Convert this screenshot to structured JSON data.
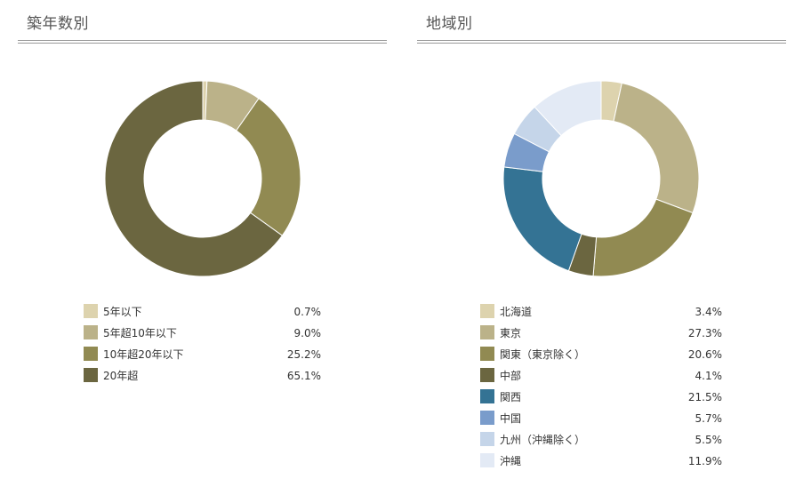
{
  "chart_data": [
    {
      "type": "pie",
      "title": "築年数別",
      "categories": [
        "5年以下",
        "5年超10年以下",
        "10年超20年以下",
        "20年超"
      ],
      "values": [
        0.7,
        9.0,
        25.2,
        65.1
      ],
      "display": [
        "0.7%",
        "9.0%",
        "25.2%",
        "65.1%"
      ],
      "colors": [
        "#ddd3ae",
        "#bbb289",
        "#918a52",
        "#6b6640"
      ]
    },
    {
      "type": "pie",
      "title": "地域別",
      "categories": [
        "北海道",
        "東京",
        "関東（東京除く）",
        "中部",
        "関西",
        "中国",
        "九州（沖縄除く）",
        "沖縄"
      ],
      "values": [
        3.4,
        27.3,
        20.6,
        4.1,
        21.5,
        5.7,
        5.5,
        11.9
      ],
      "display": [
        "3.4%",
        "27.3%",
        "20.6%",
        "4.1%",
        "21.5%",
        "5.7%",
        "5.5%",
        "11.9%"
      ],
      "colors": [
        "#ddd3ae",
        "#bbb289",
        "#918a52",
        "#6b6640",
        "#347394",
        "#7a9ccb",
        "#c5d5e9",
        "#e3eaf5"
      ]
    }
  ]
}
